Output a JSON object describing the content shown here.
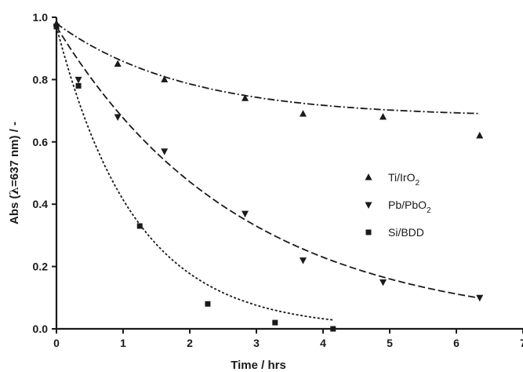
{
  "chart_data": {
    "type": "scatter",
    "xlabel": "Time / hrs",
    "ylabel_parts": {
      "pre": "Abs (",
      "symbol": "λ",
      "post": "=637 nm) / -"
    },
    "xlim": [
      0,
      7
    ],
    "ylim": [
      0,
      1.0
    ],
    "x_ticks": [
      0,
      1,
      2,
      3,
      4,
      5,
      6,
      7
    ],
    "y_ticks": [
      0.0,
      0.2,
      0.4,
      0.6,
      0.8,
      1.0
    ],
    "y_tick_labels": [
      "0.0",
      "0.2",
      "0.4",
      "0.6",
      "0.8",
      "1.0"
    ],
    "grid": false,
    "legend_position": "center-right",
    "series": [
      {
        "name_main": "Ti/IrO",
        "name_sub": "2",
        "marker": "triangle-up",
        "line_style": "dash-dot",
        "color": "#1a1a1a",
        "x": [
          0,
          0.92,
          1.62,
          2.83,
          3.7,
          4.9,
          6.35
        ],
        "y": [
          0.98,
          0.85,
          0.8,
          0.74,
          0.69,
          0.68,
          0.62
        ],
        "fit": {
          "a": 0.3,
          "b": 0.52,
          "c": 0.68
        }
      },
      {
        "name_main": "Pb/PbO",
        "name_sub": "2",
        "marker": "triangle-down",
        "line_style": "dashed",
        "color": "#1a1a1a",
        "x": [
          0,
          0.33,
          0.92,
          1.62,
          2.83,
          3.7,
          4.9,
          6.35
        ],
        "y": [
          0.97,
          0.8,
          0.68,
          0.57,
          0.37,
          0.22,
          0.15,
          0.1
        ],
        "fit": {
          "a": 0.97,
          "b": 0.36,
          "c": 0
        }
      },
      {
        "name_main": "Si/BDD",
        "name_sub": "",
        "marker": "square",
        "line_style": "dotted",
        "color": "#1a1a1a",
        "x": [
          0,
          0.33,
          1.25,
          2.27,
          3.28,
          4.15
        ],
        "y": [
          0.97,
          0.78,
          0.33,
          0.08,
          0.02,
          0.0
        ],
        "fit": {
          "a": 0.97,
          "b": 0.85,
          "c": 0,
          "t_end": 4.15
        }
      }
    ]
  }
}
